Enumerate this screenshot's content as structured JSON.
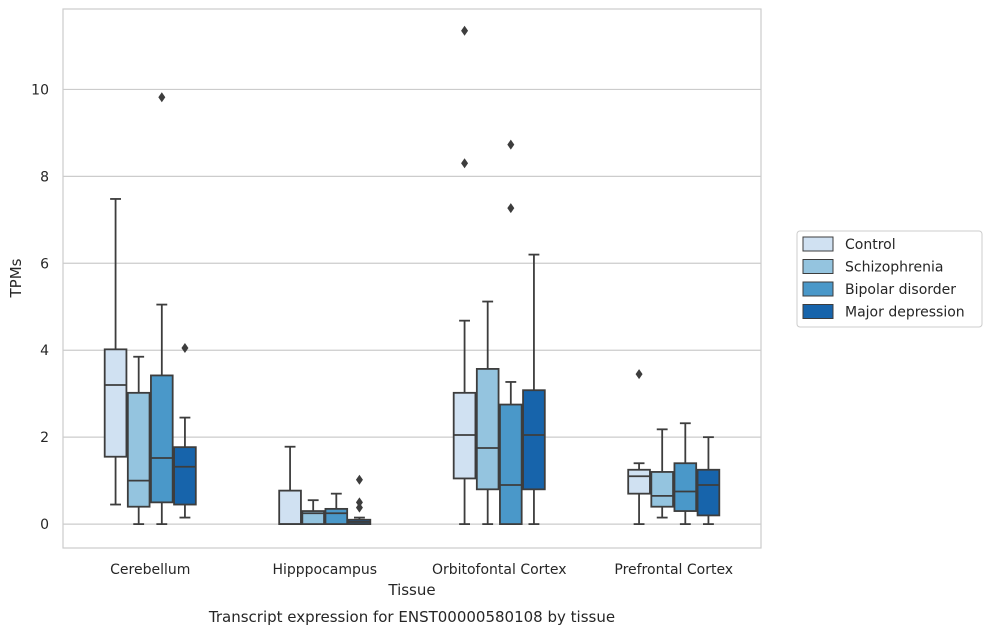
{
  "chart_data": {
    "type": "box",
    "caption": "Transcript expression for ENST00000580108 by tissue",
    "xlabel": "Tissue",
    "ylabel": "TPMs",
    "ylim": [
      -0.55,
      11.85
    ],
    "yticks": [
      0,
      2,
      4,
      6,
      8,
      10
    ],
    "grid": "horizontal",
    "legend_position": "right",
    "categories": [
      "Cerebellum",
      "Hipppocampus",
      "Orbitofontal Cortex",
      "Prefrontal Cortex"
    ],
    "series": [
      {
        "name": "Control",
        "color": "#d0e1f2",
        "boxes": [
          {
            "whislo": 0.45,
            "q1": 1.55,
            "med": 3.2,
            "q3": 4.02,
            "whishi": 7.48,
            "fliers": []
          },
          {
            "whislo": 0.0,
            "q1": 0.0,
            "med": 0.0,
            "q3": 0.77,
            "whishi": 1.78,
            "fliers": []
          },
          {
            "whislo": 0.0,
            "q1": 1.05,
            "med": 2.05,
            "q3": 3.02,
            "whishi": 4.68,
            "fliers": [
              8.3,
              11.35
            ]
          },
          {
            "whislo": 0.0,
            "q1": 0.7,
            "med": 1.1,
            "q3": 1.25,
            "whishi": 1.4,
            "fliers": [
              3.45
            ]
          }
        ]
      },
      {
        "name": "Schizophrenia",
        "color": "#94c4df",
        "boxes": [
          {
            "whislo": 0.0,
            "q1": 0.4,
            "med": 1.0,
            "q3": 3.02,
            "whishi": 3.85,
            "fliers": []
          },
          {
            "whislo": 0.0,
            "q1": 0.0,
            "med": 0.25,
            "q3": 0.3,
            "whishi": 0.55,
            "fliers": []
          },
          {
            "whislo": 0.0,
            "q1": 0.8,
            "med": 1.75,
            "q3": 3.57,
            "whishi": 5.12,
            "fliers": []
          },
          {
            "whislo": 0.15,
            "q1": 0.4,
            "med": 0.65,
            "q3": 1.2,
            "whishi": 2.18,
            "fliers": []
          }
        ]
      },
      {
        "name": "Bipolar disorder",
        "color": "#4a98c9",
        "boxes": [
          {
            "whislo": 0.0,
            "q1": 0.5,
            "med": 1.52,
            "q3": 3.42,
            "whishi": 5.05,
            "fliers": [
              9.82
            ]
          },
          {
            "whislo": 0.0,
            "q1": 0.0,
            "med": 0.25,
            "q3": 0.35,
            "whishi": 0.7,
            "fliers": []
          },
          {
            "whislo": 0.0,
            "q1": 0.0,
            "med": 0.9,
            "q3": 2.75,
            "whishi": 3.27,
            "fliers": [
              7.27,
              8.73
            ]
          },
          {
            "whislo": 0.0,
            "q1": 0.3,
            "med": 0.75,
            "q3": 1.4,
            "whishi": 2.32,
            "fliers": []
          }
        ]
      },
      {
        "name": "Major depression",
        "color": "#1764ab",
        "boxes": [
          {
            "whislo": 0.15,
            "q1": 0.45,
            "med": 1.32,
            "q3": 1.77,
            "whishi": 2.45,
            "fliers": [
              4.05
            ]
          },
          {
            "whislo": 0.0,
            "q1": 0.0,
            "med": 0.05,
            "q3": 0.1,
            "whishi": 0.15,
            "fliers": [
              0.38,
              0.5,
              1.02
            ]
          },
          {
            "whislo": 0.0,
            "q1": 0.8,
            "med": 2.05,
            "q3": 3.08,
            "whishi": 6.2,
            "fliers": []
          },
          {
            "whislo": 0.0,
            "q1": 0.2,
            "med": 0.9,
            "q3": 1.25,
            "whishi": 2.0,
            "fliers": []
          }
        ]
      }
    ]
  }
}
